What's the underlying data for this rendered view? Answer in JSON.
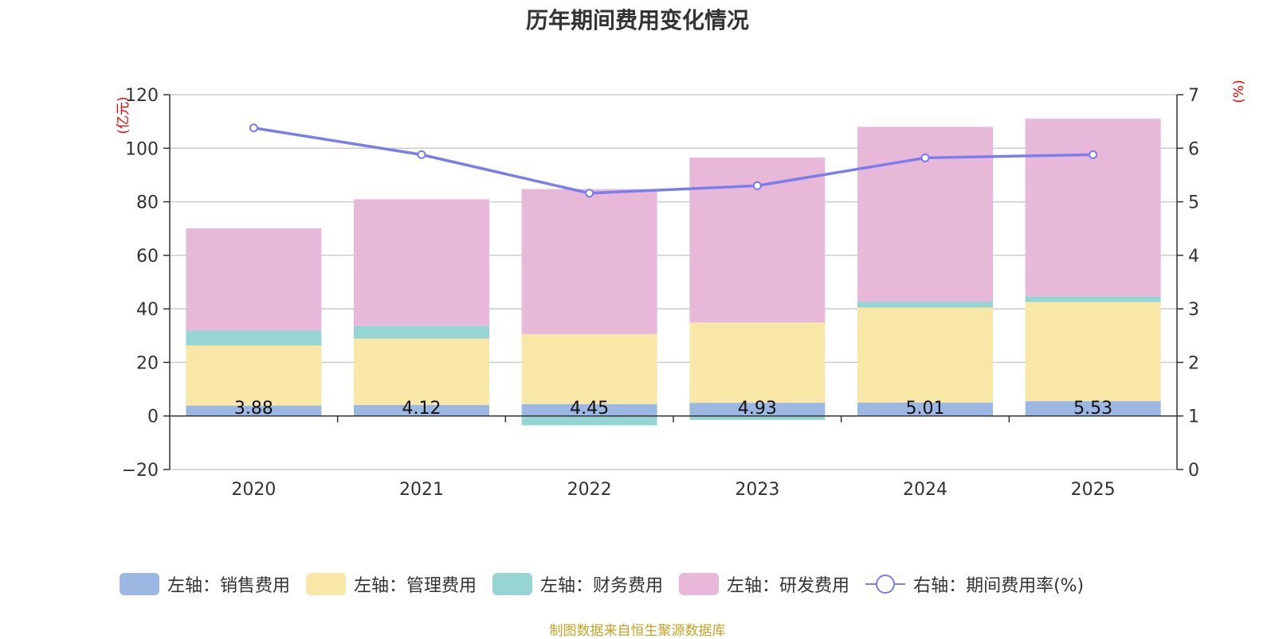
{
  "chart_data": {
    "type": "bar",
    "title": "历年期间费用变化情况",
    "categories": [
      "2020",
      "2021",
      "2022",
      "2023",
      "2024",
      "2025"
    ],
    "y_left_label": "(亿元)",
    "y_right_label": "(%)",
    "y_left_ticks": [
      "120",
      "100",
      "80",
      "60",
      "40",
      "20",
      "0",
      "−20"
    ],
    "y_right_ticks": [
      "7",
      "6",
      "5",
      "4",
      "3",
      "2",
      "1",
      "0"
    ],
    "ylim_left": [
      -20,
      120
    ],
    "ylim_right": [
      0,
      7
    ],
    "grid": true,
    "legend_position": "bottom",
    "series": [
      {
        "name": "左轴：销售费用",
        "type": "bar",
        "axis": "left",
        "color": "#9bb7e2",
        "values": [
          3.88,
          4.12,
          4.45,
          4.93,
          5.01,
          5.53
        ]
      },
      {
        "name": "左轴：管理费用",
        "type": "bar",
        "axis": "left",
        "color": "#f8e7a6",
        "values": [
          22.5,
          24.8,
          26.1,
          30.0,
          35.5,
          37.0
        ]
      },
      {
        "name": "左轴：财务费用",
        "type": "bar",
        "axis": "left",
        "color": "#97d5d4",
        "values": [
          5.5,
          4.8,
          -3.5,
          -1.5,
          2.2,
          2.2
        ]
      },
      {
        "name": "左轴：研发费用",
        "type": "bar",
        "axis": "left",
        "color": "#e8b8d8",
        "values": [
          38.2,
          47.2,
          54.2,
          61.6,
          65.3,
          66.3
        ]
      },
      {
        "name": "右轴：期间费用率(%)",
        "type": "line",
        "axis": "right",
        "color": "#7b7ded",
        "values": [
          6.38,
          5.88,
          5.16,
          5.3,
          5.82,
          5.88
        ]
      }
    ],
    "data_labels": [
      "3.88",
      "4.12",
      "4.45",
      "4.93",
      "5.01",
      "5.53"
    ]
  },
  "footer": {
    "source": "制图数据来自恒生聚源数据库"
  }
}
